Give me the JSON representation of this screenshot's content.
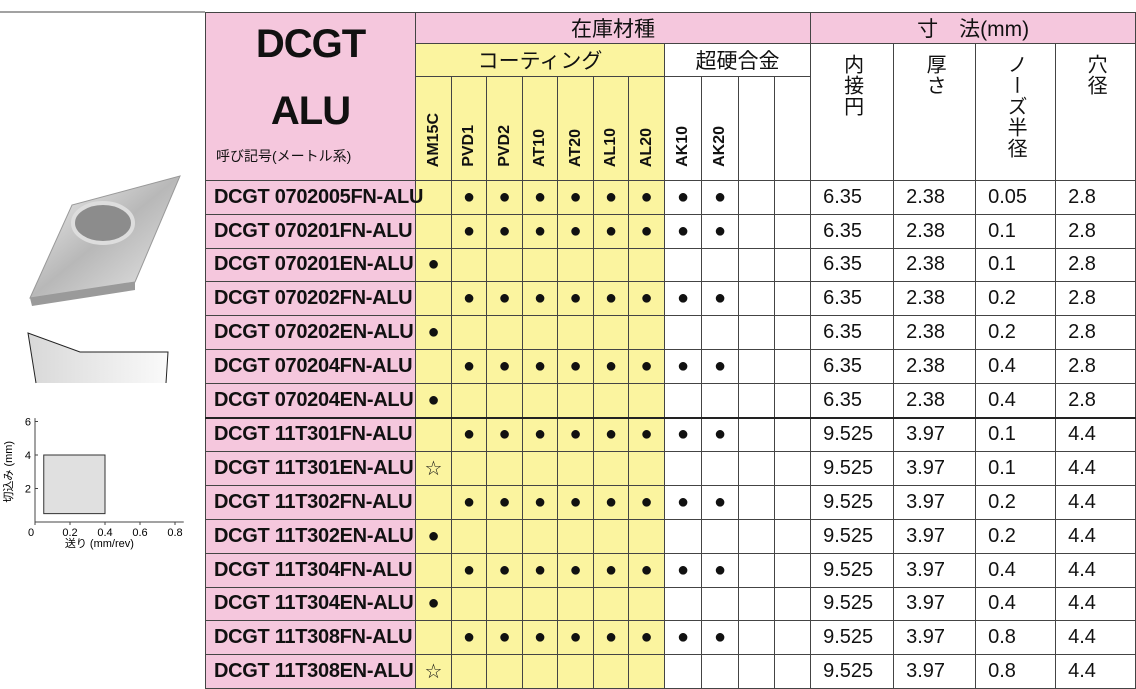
{
  "header": {
    "series": "DCGT",
    "variant": "ALU",
    "designation": "呼び記号(メートル系)",
    "stock_grades": "在庫材種",
    "coating": "コーティング",
    "carbide": "超硬合金",
    "dimensions": "寸　法(mm)",
    "grades": [
      "AM15C",
      "PVD1",
      "PVD2",
      "AT10",
      "AT20",
      "AL10",
      "AL20",
      "AK10",
      "AK20"
    ],
    "dimension_columns": [
      "内接円",
      "厚さ",
      "ノーズ半径",
      "穴径"
    ]
  },
  "rows": [
    {
      "designation": "DCGT 0702005FN-ALU",
      "grades": [
        null,
        "●",
        "●",
        "●",
        "●",
        "●",
        "●",
        "●",
        "●"
      ],
      "dims": [
        6.35,
        2.38,
        0.05,
        2.8
      ]
    },
    {
      "designation": "DCGT 070201FN-ALU",
      "grades": [
        null,
        "●",
        "●",
        "●",
        "●",
        "●",
        "●",
        "●",
        "●"
      ],
      "dims": [
        6.35,
        2.38,
        0.1,
        2.8
      ]
    },
    {
      "designation": "DCGT 070201EN-ALU",
      "grades": [
        "●",
        null,
        null,
        null,
        null,
        null,
        null,
        null,
        null
      ],
      "dims": [
        6.35,
        2.38,
        0.1,
        2.8
      ]
    },
    {
      "designation": "DCGT 070202FN-ALU",
      "grades": [
        null,
        "●",
        "●",
        "●",
        "●",
        "●",
        "●",
        "●",
        "●"
      ],
      "dims": [
        6.35,
        2.38,
        0.2,
        2.8
      ]
    },
    {
      "designation": "DCGT 070202EN-ALU",
      "grades": [
        "●",
        null,
        null,
        null,
        null,
        null,
        null,
        null,
        null
      ],
      "dims": [
        6.35,
        2.38,
        0.2,
        2.8
      ]
    },
    {
      "designation": "DCGT 070204FN-ALU",
      "grades": [
        null,
        "●",
        "●",
        "●",
        "●",
        "●",
        "●",
        "●",
        "●"
      ],
      "dims": [
        6.35,
        2.38,
        0.4,
        2.8
      ]
    },
    {
      "designation": "DCGT 070204EN-ALU",
      "grades": [
        "●",
        null,
        null,
        null,
        null,
        null,
        null,
        null,
        null
      ],
      "dims": [
        6.35,
        2.38,
        0.4,
        2.8
      ]
    },
    {
      "designation": "DCGT 11T301FN-ALU",
      "grades": [
        null,
        "●",
        "●",
        "●",
        "●",
        "●",
        "●",
        "●",
        "●"
      ],
      "dims": [
        9.525,
        3.97,
        0.1,
        4.4
      ]
    },
    {
      "designation": "DCGT 11T301EN-ALU",
      "grades": [
        "☆",
        null,
        null,
        null,
        null,
        null,
        null,
        null,
        null
      ],
      "dims": [
        9.525,
        3.97,
        0.1,
        4.4
      ]
    },
    {
      "designation": "DCGT 11T302FN-ALU",
      "grades": [
        null,
        "●",
        "●",
        "●",
        "●",
        "●",
        "●",
        "●",
        "●"
      ],
      "dims": [
        9.525,
        3.97,
        0.2,
        4.4
      ]
    },
    {
      "designation": "DCGT 11T302EN-ALU",
      "grades": [
        "●",
        null,
        null,
        null,
        null,
        null,
        null,
        null,
        null
      ],
      "dims": [
        9.525,
        3.97,
        0.2,
        4.4
      ]
    },
    {
      "designation": "DCGT 11T304FN-ALU",
      "grades": [
        null,
        "●",
        "●",
        "●",
        "●",
        "●",
        "●",
        "●",
        "●"
      ],
      "dims": [
        9.525,
        3.97,
        0.4,
        4.4
      ]
    },
    {
      "designation": "DCGT 11T304EN-ALU",
      "grades": [
        "●",
        null,
        null,
        null,
        null,
        null,
        null,
        null,
        null
      ],
      "dims": [
        9.525,
        3.97,
        0.4,
        4.4
      ]
    },
    {
      "designation": "DCGT 11T308FN-ALU",
      "grades": [
        null,
        "●",
        "●",
        "●",
        "●",
        "●",
        "●",
        "●",
        "●"
      ],
      "dims": [
        9.525,
        3.97,
        0.8,
        4.4
      ]
    },
    {
      "designation": "DCGT 11T308EN-ALU",
      "grades": [
        "☆",
        null,
        null,
        null,
        null,
        null,
        null,
        null,
        null
      ],
      "dims": [
        9.525,
        3.97,
        0.8,
        4.4
      ]
    }
  ],
  "cutting_chart": {
    "ylabel": "切込み (mm)",
    "xlabel": "送り (mm/rev)",
    "xlim": [
      0,
      0.85
    ],
    "ylim": [
      0,
      6.2
    ],
    "xticks": [
      0,
      0.2,
      0.4,
      0.6,
      0.8
    ],
    "yticks": [
      2,
      4,
      6
    ],
    "region": {
      "x": [
        0.05,
        0.4
      ],
      "y": [
        0.5,
        4
      ]
    }
  }
}
